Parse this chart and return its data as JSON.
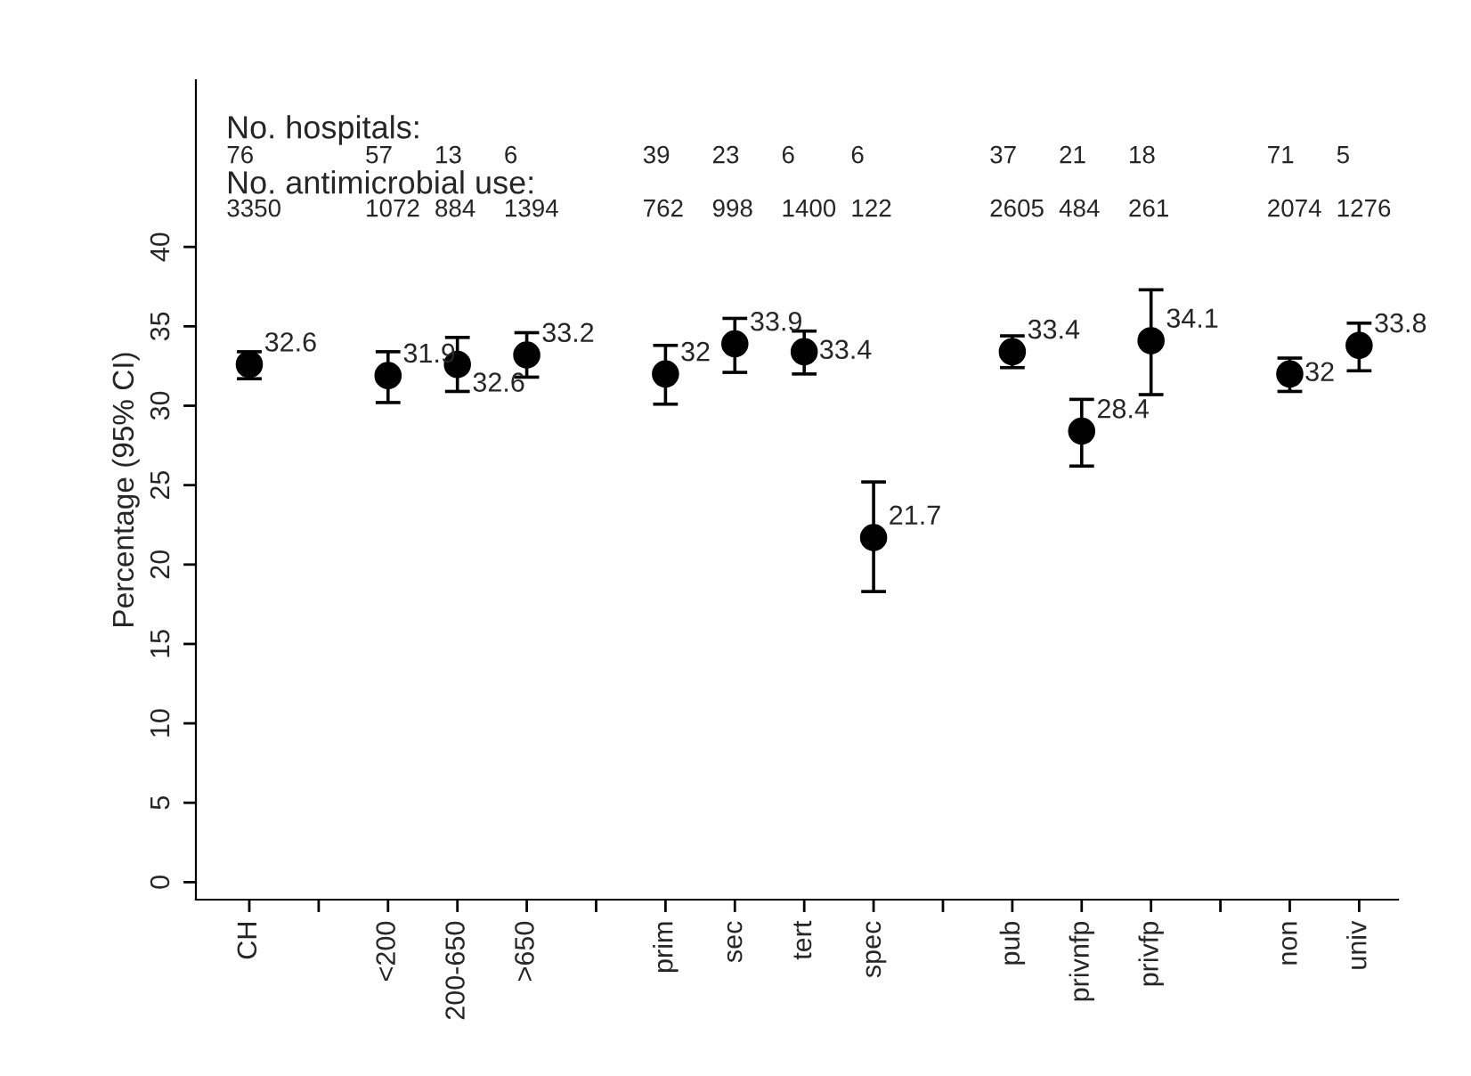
{
  "chart_data": {
    "type": "scatter",
    "ylabel": "Percentage (95% CI)",
    "categories": [
      "CH",
      null,
      "<200",
      "200-650",
      ">650",
      null,
      "prim",
      "sec",
      "tert",
      "spec",
      null,
      "pub",
      "privnfp",
      "privfp",
      null,
      "non",
      "univ"
    ],
    "values": [
      32.6,
      null,
      31.9,
      32.6,
      33.2,
      null,
      32,
      33.9,
      33.4,
      21.7,
      null,
      33.4,
      28.4,
      34.1,
      null,
      32,
      33.8
    ],
    "errors": [
      [
        31.7,
        33.4
      ],
      null,
      [
        30.2,
        33.4
      ],
      [
        30.9,
        34.3
      ],
      [
        31.8,
        34.6
      ],
      null,
      [
        30.1,
        33.8
      ],
      [
        32.1,
        35.5
      ],
      [
        32.0,
        34.7
      ],
      [
        18.3,
        25.2
      ],
      null,
      [
        32.4,
        34.4
      ],
      [
        26.2,
        30.4
      ],
      [
        30.7,
        37.3
      ],
      null,
      [
        30.9,
        33.0
      ],
      [
        32.2,
        35.2
      ]
    ],
    "color": "#000000",
    "marker": "circle",
    "data_labels": true,
    "ylim": [
      -1.1,
      50.5
    ],
    "yticks": [
      0,
      5,
      10,
      15,
      20,
      25,
      30,
      35,
      40
    ],
    "grid": false,
    "annotations": [
      "No. hospitals:",
      "76",
      "57",
      "13",
      "6",
      "39",
      "23",
      "6",
      "6",
      "37",
      "21",
      "18",
      "71",
      "5",
      "No. antimicrobial use:",
      "3350",
      "1072",
      "884",
      "1394",
      "762",
      "998",
      "1400",
      "122",
      "2605",
      "484",
      "261",
      "2074",
      "1276"
    ]
  }
}
